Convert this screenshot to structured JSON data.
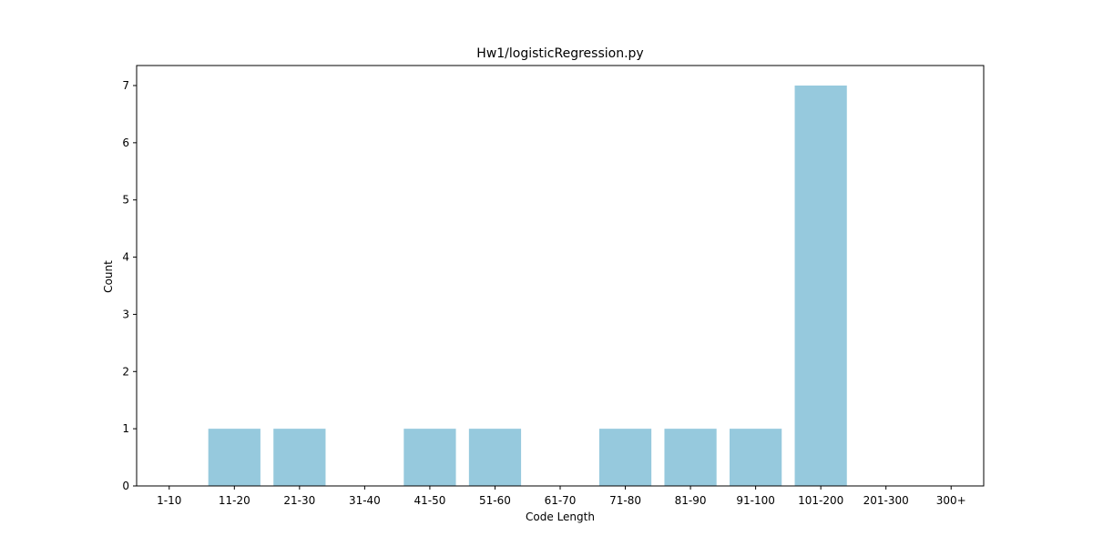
{
  "chart_data": {
    "type": "bar",
    "title": "Hw1/logisticRegression.py",
    "xlabel": "Code Length",
    "ylabel": "Count",
    "categories": [
      "1-10",
      "11-20",
      "21-30",
      "31-40",
      "41-50",
      "51-60",
      "61-70",
      "71-80",
      "81-90",
      "91-100",
      "101-200",
      "201-300",
      "300+"
    ],
    "values": [
      0,
      1,
      1,
      0,
      1,
      1,
      0,
      1,
      1,
      1,
      7,
      0,
      0
    ],
    "ylim": [
      0,
      7.35
    ],
    "yticks": [
      "0",
      "1",
      "2",
      "3",
      "4",
      "5",
      "6",
      "7"
    ],
    "grid": false,
    "bar_color": "#96c9dd"
  }
}
